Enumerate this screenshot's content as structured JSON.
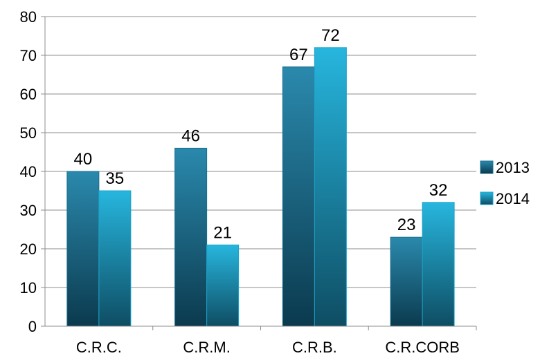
{
  "chart_data": {
    "type": "bar",
    "categories": [
      "C.R.C.",
      "C.R.M.",
      "C.R.B.",
      "C.R.CORB"
    ],
    "series": [
      {
        "name": "2013",
        "values": [
          40,
          46,
          67,
          23
        ],
        "color": "#1b6f8e"
      },
      {
        "name": "2014",
        "values": [
          35,
          21,
          72,
          32
        ],
        "color": "#1fa3c9"
      }
    ],
    "yticks": [
      "0",
      "10",
      "20",
      "30",
      "40",
      "50",
      "60",
      "70",
      "80"
    ],
    "ylim": [
      0,
      80
    ],
    "grid": true,
    "legend_position": "right",
    "title": "",
    "xlabel": "",
    "ylabel": ""
  }
}
